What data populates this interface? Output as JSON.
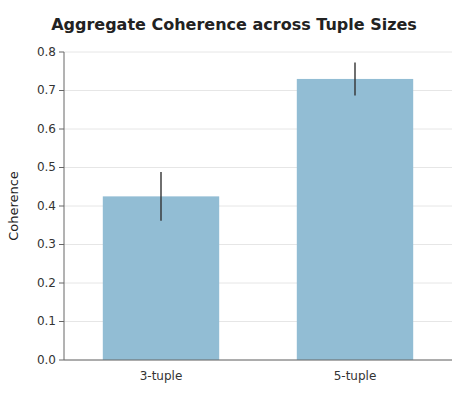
{
  "chart_data": {
    "type": "bar",
    "title": "Aggregate Coherence across Tuple Sizes",
    "ylabel": "Coherence",
    "categories": [
      "3-tuple",
      "5-tuple"
    ],
    "values": [
      0.425,
      0.73
    ],
    "errors": [
      0.063,
      0.043
    ],
    "color": "#92bdd4",
    "ylim": [
      0.0,
      0.8
    ],
    "yticks": [
      {
        "value": 0.0,
        "label": "0.0"
      },
      0.1,
      0.2,
      0.3,
      0.4,
      0.5,
      0.6,
      0.7,
      0.8
    ]
  }
}
